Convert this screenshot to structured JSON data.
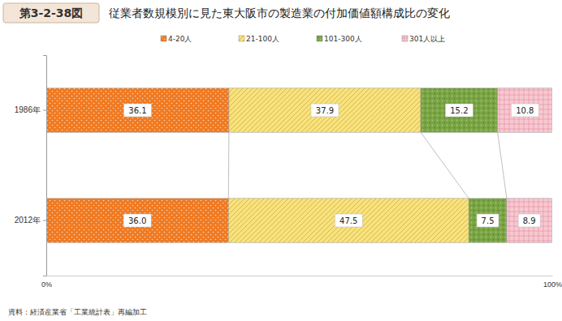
{
  "chart_data": {
    "type": "bar",
    "figure_label": "第3-2-38図",
    "title": "従業者数規模別に見た東大阪市の製造業の付加価値額構成比の変化",
    "source": "資料：経済産業省「工業統計表」再編加工",
    "orientation": "horizontal",
    "stacked": true,
    "data_labels": true,
    "legend": "top",
    "categories": [
      "1986年",
      "2012年"
    ],
    "series": [
      {
        "name": "4-20人",
        "color": "#f07a22",
        "values": [
          36.1,
          36.0
        ],
        "value_labels": [
          "36.1",
          "36.0"
        ]
      },
      {
        "name": "21-100人",
        "color": "#f7e27e",
        "values": [
          37.9,
          47.5
        ],
        "value_labels": [
          "37.9",
          "47.5"
        ]
      },
      {
        "name": "101-300人",
        "color": "#7aa544",
        "values": [
          15.2,
          7.5
        ],
        "value_labels": [
          "15.2",
          "7.5"
        ]
      },
      {
        "name": "301人以上",
        "color": "#f6c9d2",
        "values": [
          10.8,
          8.9
        ],
        "value_labels": [
          "10.8",
          "8.9"
        ]
      }
    ],
    "xlim": [
      0,
      100
    ],
    "xticks": [
      {
        "value": 0,
        "label": "0%"
      },
      {
        "value": 100,
        "label": "100%"
      }
    ]
  }
}
